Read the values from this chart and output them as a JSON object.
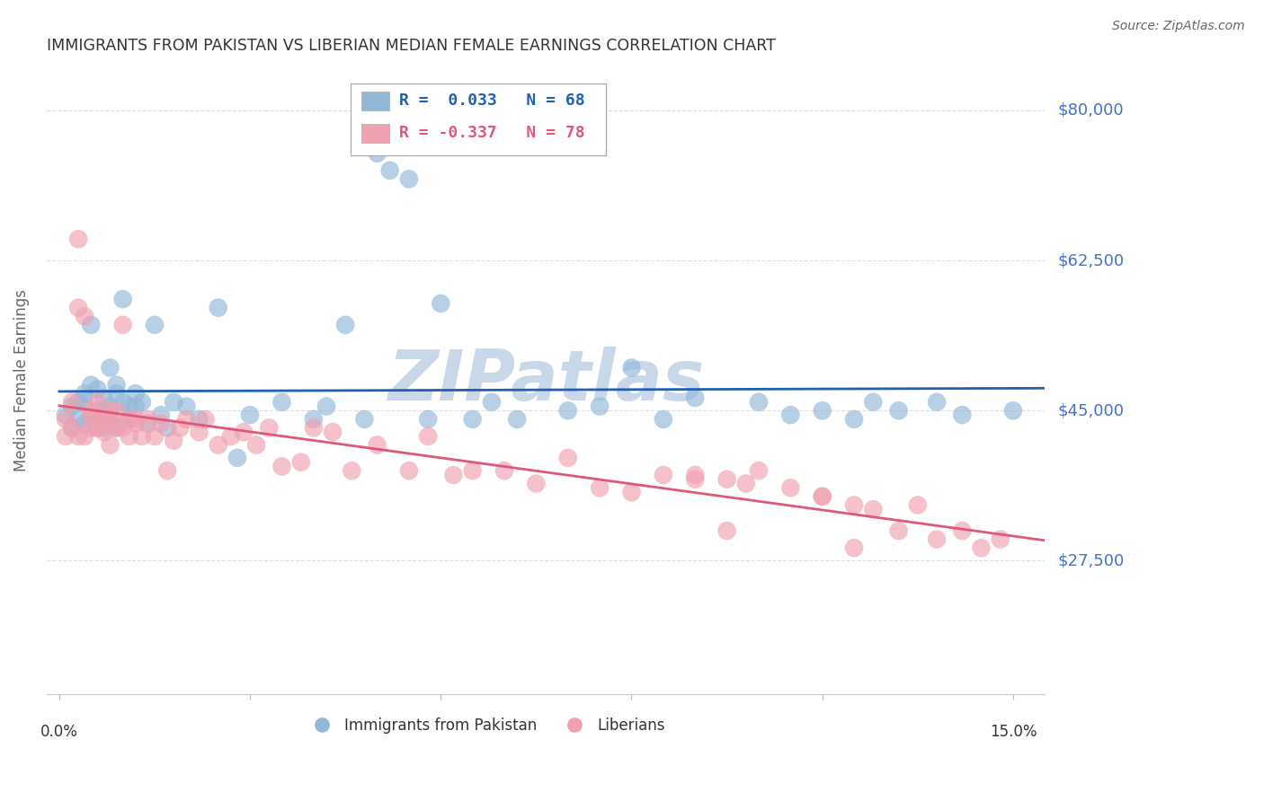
{
  "title": "IMMIGRANTS FROM PAKISTAN VS LIBERIAN MEDIAN FEMALE EARNINGS CORRELATION CHART",
  "source": "Source: ZipAtlas.com",
  "ylabel": "Median Female Earnings",
  "ytick_labels": [
    "$27,500",
    "$45,000",
    "$62,500",
    "$80,000"
  ],
  "ytick_values": [
    27500,
    45000,
    62500,
    80000
  ],
  "ymin": 12000,
  "ymax": 85000,
  "xmin": -0.002,
  "xmax": 0.155,
  "legend_label1": "Immigrants from Pakistan",
  "legend_label2": "Liberians",
  "R_pakistan": 0.033,
  "N_pakistan": 68,
  "R_liberian": -0.337,
  "N_liberian": 78,
  "scatter_color_pakistan": "#92b8d8",
  "scatter_color_liberian": "#f0a0b0",
  "line_color_pakistan": "#2060b0",
  "line_color_liberian": "#e05878",
  "legend_box_color_pakistan": "#92b8d8",
  "legend_box_color_liberian": "#f0a0b0",
  "legend_text_color_pakistan": "#2060b0",
  "legend_text_color_liberian": "#e05878",
  "background_color": "#ffffff",
  "grid_color": "#dddddd",
  "title_color": "#333333",
  "axis_label_color": "#666666",
  "ytick_color": "#4472c4",
  "source_color": "#666666",
  "watermark_text": "ZIPatlas",
  "watermark_color": "#c8d8e8",
  "pakistan_x": [
    0.001,
    0.002,
    0.002,
    0.003,
    0.003,
    0.004,
    0.004,
    0.004,
    0.005,
    0.005,
    0.005,
    0.006,
    0.006,
    0.006,
    0.007,
    0.007,
    0.007,
    0.007,
    0.008,
    0.008,
    0.008,
    0.009,
    0.009,
    0.009,
    0.01,
    0.01,
    0.011,
    0.011,
    0.012,
    0.012,
    0.013,
    0.014,
    0.015,
    0.016,
    0.017,
    0.018,
    0.02,
    0.022,
    0.025,
    0.028,
    0.03,
    0.035,
    0.04,
    0.042,
    0.045,
    0.048,
    0.05,
    0.052,
    0.055,
    0.058,
    0.06,
    0.065,
    0.068,
    0.072,
    0.08,
    0.085,
    0.09,
    0.095,
    0.1,
    0.11,
    0.115,
    0.12,
    0.125,
    0.128,
    0.132,
    0.138,
    0.142,
    0.15
  ],
  "pakistan_y": [
    44500,
    43000,
    45500,
    46000,
    44000,
    47000,
    43500,
    46000,
    55000,
    44000,
    48000,
    45000,
    43000,
    47500,
    44500,
    46500,
    44000,
    43000,
    50000,
    44000,
    45500,
    48000,
    43000,
    47000,
    58000,
    46000,
    45500,
    44000,
    47000,
    45500,
    46000,
    43500,
    55000,
    44500,
    43000,
    46000,
    45500,
    44000,
    57000,
    39500,
    44500,
    46000,
    44000,
    45500,
    55000,
    44000,
    75000,
    73000,
    72000,
    44000,
    57500,
    44000,
    46000,
    44000,
    45000,
    45500,
    50000,
    44000,
    46500,
    46000,
    44500,
    45000,
    44000,
    46000,
    45000,
    46000,
    44500,
    45000
  ],
  "liberian_x": [
    0.001,
    0.001,
    0.002,
    0.002,
    0.003,
    0.003,
    0.003,
    0.004,
    0.004,
    0.005,
    0.005,
    0.005,
    0.006,
    0.006,
    0.006,
    0.007,
    0.007,
    0.007,
    0.008,
    0.008,
    0.008,
    0.009,
    0.009,
    0.01,
    0.01,
    0.011,
    0.011,
    0.012,
    0.012,
    0.013,
    0.014,
    0.015,
    0.016,
    0.017,
    0.018,
    0.019,
    0.02,
    0.022,
    0.023,
    0.025,
    0.027,
    0.029,
    0.031,
    0.033,
    0.035,
    0.038,
    0.04,
    0.043,
    0.046,
    0.05,
    0.055,
    0.058,
    0.062,
    0.065,
    0.07,
    0.075,
    0.08,
    0.085,
    0.09,
    0.095,
    0.1,
    0.105,
    0.11,
    0.115,
    0.12,
    0.125,
    0.128,
    0.132,
    0.138,
    0.142,
    0.145,
    0.148,
    0.1,
    0.108,
    0.12,
    0.135,
    0.125,
    0.105
  ],
  "liberian_y": [
    44000,
    42000,
    46000,
    43000,
    65000,
    57000,
    42000,
    56000,
    42000,
    43000,
    44500,
    45000,
    44000,
    43000,
    46000,
    44000,
    42500,
    43500,
    45000,
    44000,
    41000,
    43000,
    45000,
    55000,
    43000,
    44000,
    42000,
    43500,
    44000,
    42000,
    44000,
    42000,
    43500,
    38000,
    41500,
    43000,
    44000,
    42500,
    44000,
    41000,
    42000,
    42500,
    41000,
    43000,
    38500,
    39000,
    43000,
    42500,
    38000,
    41000,
    38000,
    42000,
    37500,
    38000,
    38000,
    36500,
    39500,
    36000,
    35500,
    37500,
    37000,
    37000,
    38000,
    36000,
    35000,
    34000,
    33500,
    31000,
    30000,
    31000,
    29000,
    30000,
    37500,
    36500,
    35000,
    34000,
    29000,
    31000
  ]
}
